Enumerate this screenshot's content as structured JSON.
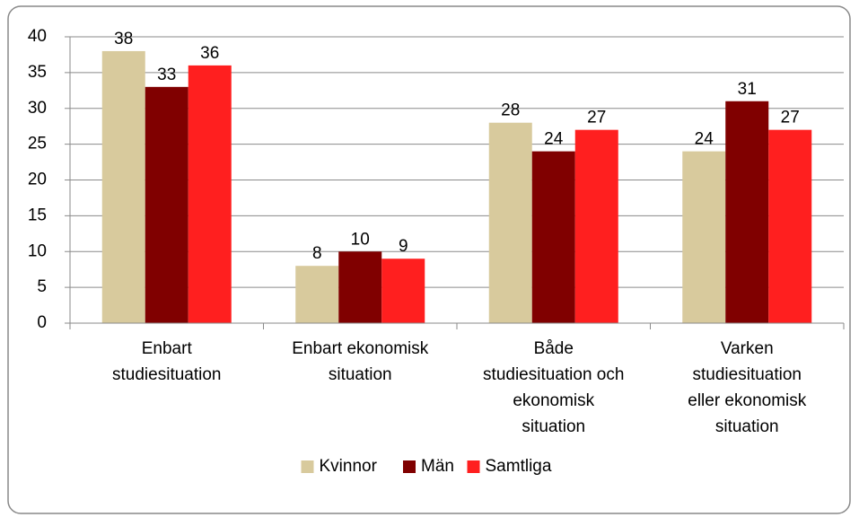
{
  "chart_data": {
    "type": "bar",
    "categories": [
      [
        "Enbart",
        "studiesituation"
      ],
      [
        "Enbart ekonomisk",
        "situation"
      ],
      [
        "Både",
        "studiesituation och",
        "ekonomisk",
        "situation"
      ],
      [
        "Varken",
        "studiesituation",
        "eller ekonomisk",
        "situation"
      ]
    ],
    "series": [
      {
        "name": "Kvinnor",
        "color": "#d8ca9d",
        "values": [
          38,
          8,
          28,
          24
        ]
      },
      {
        "name": "Män",
        "color": "#800000",
        "values": [
          33,
          10,
          24,
          31
        ]
      },
      {
        "name": "Samtliga",
        "color": "#ff1f1f",
        "values": [
          36,
          9,
          27,
          27
        ]
      }
    ],
    "ylim": [
      0,
      40
    ],
    "yticks": [
      0,
      5,
      10,
      15,
      20,
      25,
      30,
      35,
      40
    ],
    "grid": true,
    "legend": "bottom"
  }
}
